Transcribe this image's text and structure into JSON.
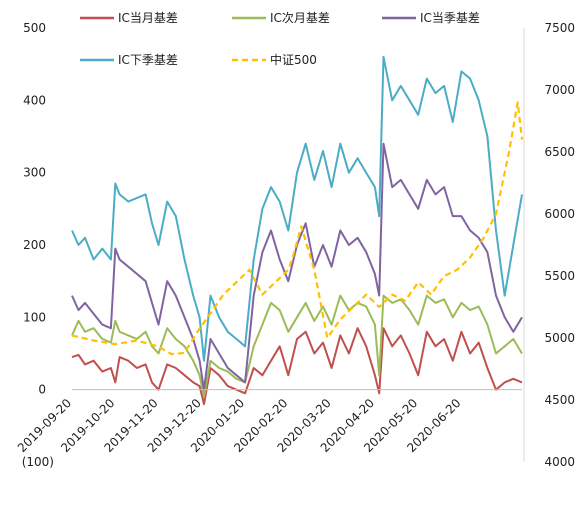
{
  "chart_data": {
    "type": "line",
    "title": "",
    "xlabel": "",
    "ylabel": "",
    "x_tick_labels": [
      "2019-09-20",
      "2019-10-20",
      "2019-11-20",
      "2019-12-20",
      "2020-01-20",
      "2020-02-20",
      "2020-03-20",
      "2020-04-20",
      "2020-05-20",
      "2020-06-20"
    ],
    "x_range": [
      0,
      10.4
    ],
    "left_axis": {
      "ylim": [
        -100,
        500
      ],
      "tick_labels": [
        "(100)",
        "0",
        "100",
        "200",
        "300",
        "400",
        "500"
      ],
      "negative_tick_color": "#ff0000"
    },
    "right_axis": {
      "ylim": [
        4000,
        7500
      ],
      "tick_labels": [
        "4000",
        "4500",
        "5000",
        "5500",
        "6000",
        "6500",
        "7000",
        "7500"
      ]
    },
    "legend_position": "top",
    "series": [
      {
        "name": "IC当月基差",
        "axis": "left",
        "color": "#c0504d",
        "dash": false,
        "x": [
          0,
          0.15,
          0.3,
          0.5,
          0.7,
          0.9,
          1.0,
          1.1,
          1.3,
          1.5,
          1.7,
          1.85,
          2.0,
          2.2,
          2.4,
          2.6,
          2.8,
          2.95,
          3.05,
          3.2,
          3.4,
          3.6,
          3.8,
          4.0,
          4.2,
          4.4,
          4.6,
          4.8,
          5.0,
          5.2,
          5.4,
          5.6,
          5.8,
          6.0,
          6.2,
          6.4,
          6.6,
          6.8,
          7.0,
          7.1,
          7.2,
          7.4,
          7.6,
          7.8,
          8.0,
          8.2,
          8.4,
          8.6,
          8.8,
          9.0,
          9.2,
          9.4,
          9.6,
          9.8,
          10.0,
          10.2,
          10.4
        ],
        "y": [
          45,
          48,
          35,
          40,
          25,
          30,
          10,
          45,
          40,
          30,
          35,
          10,
          0,
          35,
          30,
          20,
          10,
          5,
          -20,
          30,
          20,
          5,
          0,
          -5,
          30,
          20,
          40,
          60,
          20,
          70,
          80,
          50,
          65,
          30,
          75,
          50,
          85,
          60,
          20,
          -5,
          85,
          60,
          75,
          50,
          20,
          80,
          60,
          70,
          40,
          80,
          50,
          65,
          30,
          0,
          10,
          15,
          10
        ]
      },
      {
        "name": "IC次月基差",
        "axis": "left",
        "color": "#9bbb59",
        "dash": false,
        "x": [
          0,
          0.15,
          0.3,
          0.5,
          0.7,
          0.9,
          1.0,
          1.1,
          1.3,
          1.5,
          1.7,
          1.85,
          2.0,
          2.2,
          2.4,
          2.6,
          2.8,
          2.95,
          3.05,
          3.2,
          3.4,
          3.6,
          3.8,
          4.0,
          4.2,
          4.4,
          4.6,
          4.8,
          5.0,
          5.2,
          5.4,
          5.6,
          5.8,
          6.0,
          6.2,
          6.4,
          6.6,
          6.8,
          7.0,
          7.1,
          7.2,
          7.4,
          7.6,
          7.8,
          8.0,
          8.2,
          8.4,
          8.6,
          8.8,
          9.0,
          9.2,
          9.4,
          9.6,
          9.8,
          10.0,
          10.2,
          10.4
        ],
        "y": [
          75,
          95,
          80,
          85,
          70,
          65,
          95,
          80,
          75,
          70,
          80,
          60,
          50,
          85,
          70,
          60,
          40,
          20,
          -10,
          40,
          30,
          25,
          15,
          10,
          60,
          90,
          120,
          110,
          80,
          100,
          120,
          95,
          115,
          90,
          130,
          110,
          120,
          115,
          90,
          20,
          130,
          120,
          125,
          110,
          90,
          130,
          120,
          125,
          100,
          120,
          110,
          115,
          90,
          50,
          60,
          70,
          50
        ]
      },
      {
        "name": "IC当季基差",
        "axis": "left",
        "color": "#8064a2",
        "dash": false,
        "x": [
          0,
          0.15,
          0.3,
          0.5,
          0.7,
          0.9,
          1.0,
          1.1,
          1.3,
          1.5,
          1.7,
          1.85,
          2.0,
          2.2,
          2.4,
          2.6,
          2.8,
          2.95,
          3.05,
          3.2,
          3.4,
          3.6,
          3.8,
          4.0,
          4.2,
          4.4,
          4.6,
          4.8,
          5.0,
          5.2,
          5.4,
          5.6,
          5.8,
          6.0,
          6.2,
          6.4,
          6.6,
          6.8,
          7.0,
          7.1,
          7.2,
          7.4,
          7.6,
          7.8,
          8.0,
          8.2,
          8.4,
          8.6,
          8.8,
          9.0,
          9.2,
          9.4,
          9.6,
          9.8,
          10.0,
          10.2,
          10.4
        ],
        "y": [
          130,
          110,
          120,
          105,
          90,
          85,
          195,
          180,
          170,
          160,
          150,
          120,
          90,
          150,
          130,
          100,
          70,
          40,
          0,
          70,
          50,
          30,
          20,
          10,
          130,
          190,
          220,
          180,
          150,
          200,
          230,
          170,
          200,
          170,
          220,
          200,
          210,
          190,
          160,
          130,
          340,
          280,
          290,
          270,
          250,
          290,
          270,
          280,
          240,
          240,
          220,
          210,
          190,
          130,
          100,
          80,
          100
        ]
      },
      {
        "name": "IC下季基差",
        "axis": "left",
        "color": "#4bacc6",
        "dash": false,
        "x": [
          0,
          0.15,
          0.3,
          0.5,
          0.7,
          0.9,
          1.0,
          1.1,
          1.3,
          1.5,
          1.7,
          1.85,
          2.0,
          2.2,
          2.4,
          2.6,
          2.8,
          2.95,
          3.05,
          3.2,
          3.4,
          3.6,
          3.8,
          4.0,
          4.2,
          4.4,
          4.6,
          4.8,
          5.0,
          5.2,
          5.4,
          5.6,
          5.8,
          6.0,
          6.2,
          6.4,
          6.6,
          6.8,
          7.0,
          7.1,
          7.2,
          7.4,
          7.6,
          7.8,
          8.0,
          8.2,
          8.4,
          8.6,
          8.8,
          9.0,
          9.2,
          9.4,
          9.6,
          9.8,
          10.0,
          10.2,
          10.4
        ],
        "y": [
          220,
          200,
          210,
          180,
          195,
          180,
          285,
          270,
          260,
          265,
          270,
          230,
          200,
          260,
          240,
          180,
          130,
          100,
          40,
          130,
          100,
          80,
          70,
          60,
          180,
          250,
          280,
          260,
          220,
          300,
          340,
          290,
          330,
          280,
          340,
          300,
          320,
          300,
          280,
          240,
          460,
          400,
          420,
          400,
          380,
          430,
          410,
          420,
          370,
          440,
          430,
          400,
          350,
          220,
          130,
          200,
          270
        ]
      },
      {
        "name": "中证500",
        "axis": "right",
        "color": "#ffc000",
        "dash": true,
        "x": [
          0,
          0.5,
          1.0,
          1.5,
          2.0,
          2.3,
          2.6,
          2.9,
          3.2,
          3.5,
          3.8,
          4.1,
          4.4,
          4.7,
          5.0,
          5.1,
          5.3,
          5.6,
          5.9,
          6.2,
          6.5,
          6.8,
          7.1,
          7.4,
          7.7,
          8.0,
          8.3,
          8.6,
          8.9,
          9.2,
          9.5,
          9.8,
          10.1,
          10.3,
          10.4
        ],
        "y": [
          5020,
          4980,
          4950,
          4980,
          4930,
          4870,
          4880,
          5050,
          5200,
          5350,
          5450,
          5550,
          5350,
          5450,
          5550,
          5650,
          5900,
          5550,
          5000,
          5150,
          5250,
          5350,
          5250,
          5350,
          5300,
          5450,
          5350,
          5500,
          5550,
          5650,
          5800,
          6000,
          6500,
          6900,
          6600
        ]
      }
    ]
  }
}
